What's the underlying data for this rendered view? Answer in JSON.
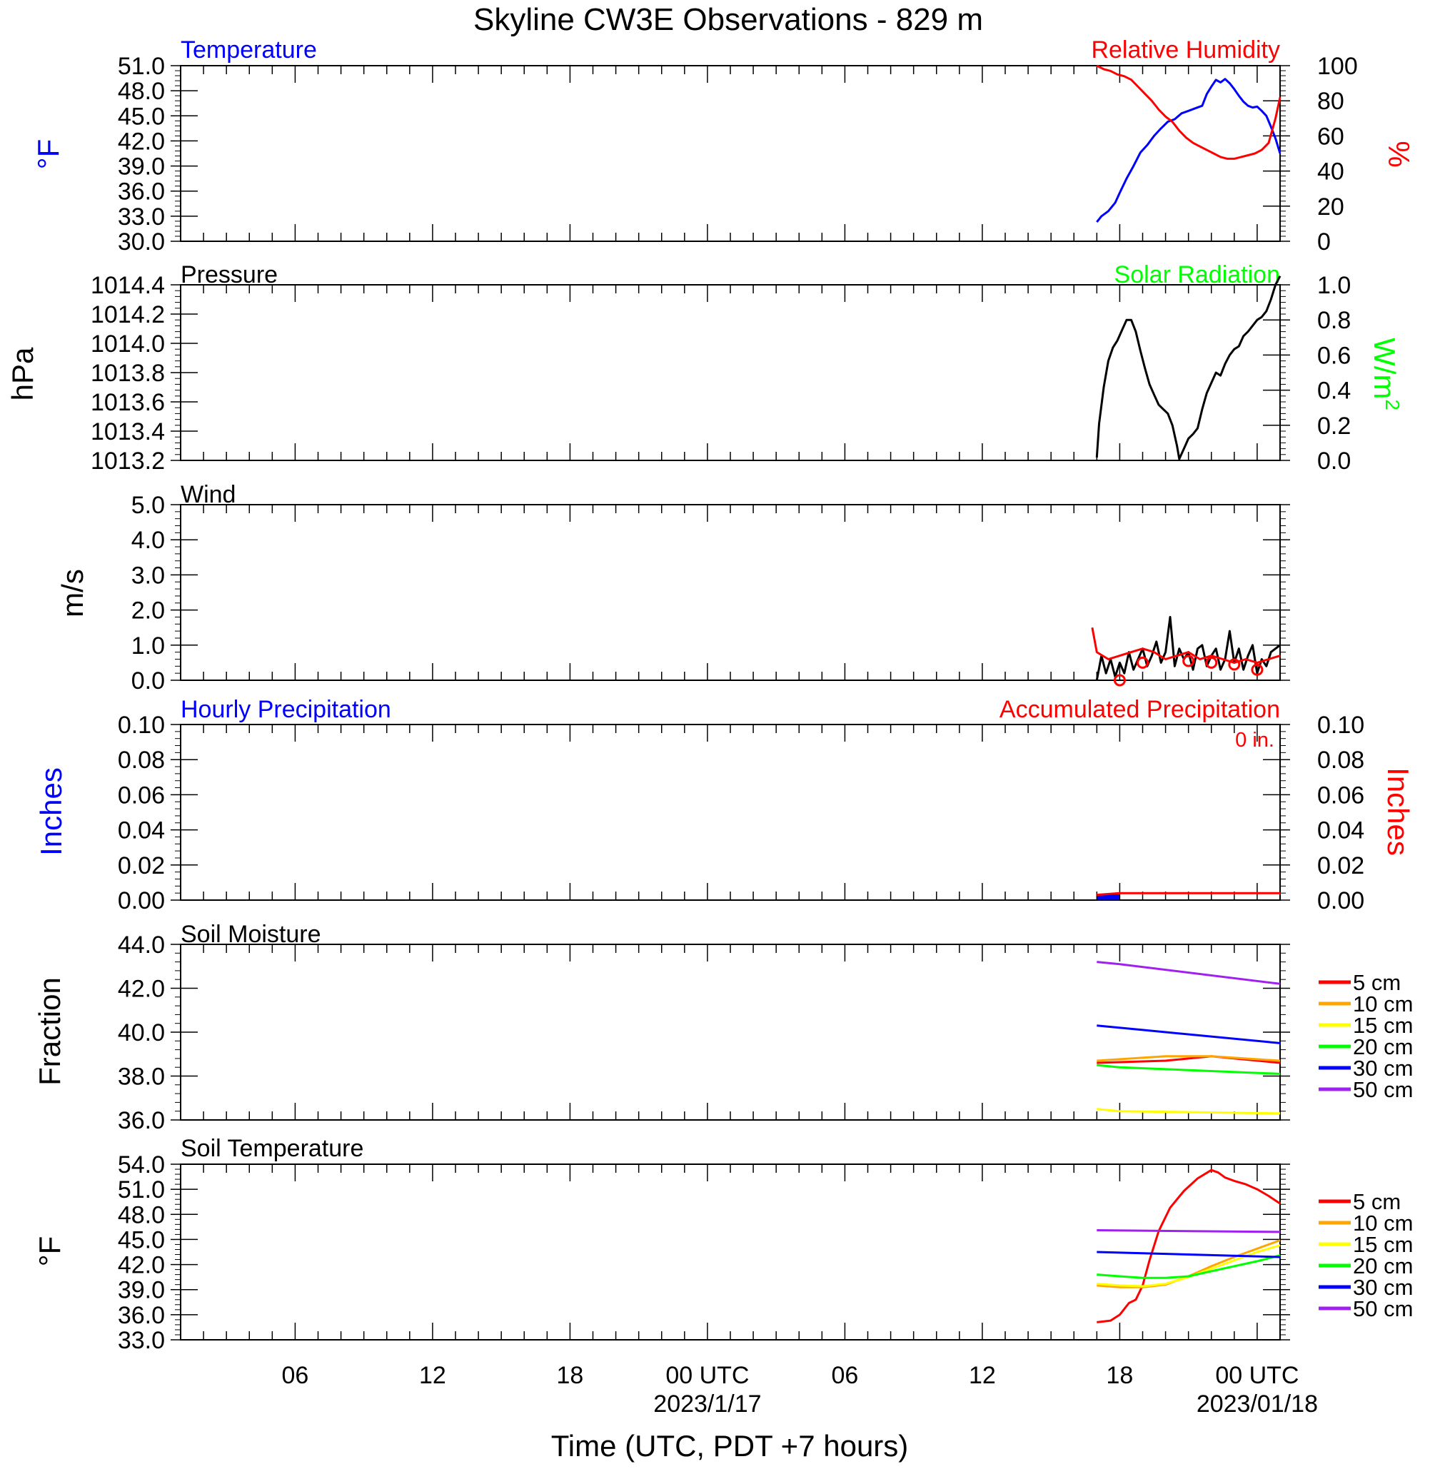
{
  "title": "Skyline CW3E Observations - 829 m",
  "x_axis": {
    "label": "Time (UTC, PDT +7 hours)",
    "tick_labels": [
      "06",
      "12",
      "18",
      "00 UTC",
      "06",
      "12",
      "18",
      "00 UTC"
    ],
    "tick_hours": [
      6,
      12,
      18,
      24,
      30,
      36,
      42,
      48
    ],
    "date_labels": [
      "2023/1/17",
      "2023/01/18"
    ],
    "date_hours": [
      24,
      48
    ],
    "range_hours": [
      1,
      49
    ],
    "note": "hours counted from 2023-01-16 00 UTC"
  },
  "colors": {
    "blue": "#0000ff",
    "red": "#ff0000",
    "green": "#00ff00",
    "black": "#000000"
  },
  "panels": {
    "temperature": {
      "title_left": "Temperature",
      "title_right": "Relative Humidity",
      "ylabel_left": "°F",
      "ylabel_right": "%",
      "ticks_left": [
        "51.0",
        "48.0",
        "45.0",
        "42.0",
        "39.0",
        "36.0",
        "33.0",
        "30.0"
      ],
      "ticks_right": [
        "100",
        "80",
        "60",
        "40",
        "20",
        "0"
      ]
    },
    "pressure": {
      "title_left": "Pressure",
      "title_right": "Solar Radiation",
      "ylabel_left": "hPa",
      "ylabel_right": "W/m2",
      "ticks_left": [
        "1014.4",
        "1014.2",
        "1014.0",
        "1013.8",
        "1013.6",
        "1013.4",
        "1013.2"
      ],
      "ticks_right": [
        "1.0",
        "0.8",
        "0.6",
        "0.4",
        "0.2",
        "0.0"
      ]
    },
    "wind": {
      "title_left": "Wind",
      "ylabel_left": "m/s",
      "ticks_left": [
        "5.0",
        "4.0",
        "3.0",
        "2.0",
        "1.0",
        "0.0"
      ]
    },
    "precip": {
      "title_left": "Hourly Precipitation",
      "title_right": "Accumulated Precipitation",
      "total": "0 in.",
      "ylabel_left": "Inches",
      "ylabel_right": "Inches",
      "ticks_left": [
        "0.10",
        "0.08",
        "0.06",
        "0.04",
        "0.02",
        "0.00"
      ],
      "ticks_right": [
        "0.10",
        "0.08",
        "0.06",
        "0.04",
        "0.02",
        "0.00"
      ]
    },
    "soil_moisture": {
      "title_left": "Soil Moisture",
      "ylabel_left": "Fraction",
      "ticks_left": [
        "44.0",
        "42.0",
        "40.0",
        "38.0",
        "36.0"
      ],
      "legend": [
        "5 cm",
        "10 cm",
        "15 cm",
        "20 cm",
        "30 cm",
        "50 cm"
      ]
    },
    "soil_temperature": {
      "title_left": "Soil Temperature",
      "ylabel_left": "°F",
      "ticks_left": [
        "54.0",
        "51.0",
        "48.0",
        "45.0",
        "42.0",
        "39.0",
        "36.0",
        "33.0"
      ],
      "legend": [
        "5 cm",
        "10 cm",
        "15 cm",
        "20 cm",
        "30 cm",
        "50 cm"
      ]
    }
  },
  "chart_data": [
    {
      "type": "line",
      "panel": "temperature",
      "ylim": [
        30,
        51
      ],
      "y2lim": [
        0,
        100
      ],
      "series": [
        {
          "name": "Temperature",
          "color": "#0000ff",
          "axis": "left",
          "x": [
            41.0,
            41.2,
            41.5,
            41.8,
            42.0,
            42.3,
            42.6,
            42.9,
            43.2,
            43.5,
            43.8,
            44.1,
            44.4,
            44.7,
            45.0,
            45.3,
            45.6,
            45.8,
            46.0,
            46.2,
            46.4,
            46.6,
            46.8,
            47.0,
            47.2,
            47.4,
            47.6,
            47.8,
            48.0,
            48.2,
            48.4,
            48.6,
            48.8,
            49.0
          ],
          "y": [
            32.3,
            33.0,
            33.6,
            34.6,
            35.8,
            37.5,
            39.0,
            40.6,
            41.5,
            42.6,
            43.5,
            44.3,
            44.6,
            45.3,
            45.6,
            45.9,
            46.2,
            47.6,
            48.5,
            49.3,
            49.0,
            49.4,
            48.9,
            48.2,
            47.4,
            46.7,
            46.2,
            46.0,
            46.1,
            45.6,
            45.0,
            43.7,
            42.3,
            40.5
          ]
        },
        {
          "name": "Relative Humidity",
          "color": "#ff0000",
          "axis": "right",
          "x": [
            41.0,
            41.3,
            41.6,
            41.9,
            42.2,
            42.5,
            42.8,
            43.1,
            43.4,
            43.7,
            44.0,
            44.3,
            44.6,
            44.9,
            45.2,
            45.5,
            45.8,
            46.1,
            46.4,
            46.7,
            47.0,
            47.3,
            47.6,
            47.9,
            48.2,
            48.5,
            48.8,
            49.0
          ],
          "y": [
            100,
            98,
            97,
            95,
            94,
            92,
            88,
            84,
            80,
            75,
            71,
            68,
            63,
            59,
            56,
            54,
            52,
            50,
            48,
            47,
            47,
            48,
            49,
            50,
            52,
            56,
            70,
            82
          ]
        }
      ]
    },
    {
      "type": "line",
      "panel": "pressure",
      "ylim": [
        1013.2,
        1014.4
      ],
      "y2lim": [
        0,
        1
      ],
      "series": [
        {
          "name": "Pressure",
          "color": "#000000",
          "axis": "left",
          "x": [
            41.0,
            41.1,
            41.3,
            41.5,
            41.7,
            41.9,
            42.1,
            42.3,
            42.5,
            42.7,
            42.9,
            43.1,
            43.3,
            43.5,
            43.7,
            43.9,
            44.1,
            44.3,
            44.5,
            44.6,
            44.8,
            45.0,
            45.2,
            45.4,
            45.6,
            45.8,
            46.0,
            46.2,
            46.4,
            46.6,
            46.8,
            47.0,
            47.2,
            47.4,
            47.6,
            47.8,
            48.0,
            48.2,
            48.4,
            48.6,
            48.8,
            49.0
          ],
          "y": [
            1013.22,
            1013.45,
            1013.7,
            1013.88,
            1013.97,
            1014.02,
            1014.09,
            1014.16,
            1014.16,
            1014.08,
            1013.95,
            1013.83,
            1013.72,
            1013.65,
            1013.58,
            1013.55,
            1013.52,
            1013.44,
            1013.3,
            1013.21,
            1013.28,
            1013.35,
            1013.38,
            1013.42,
            1013.55,
            1013.66,
            1013.73,
            1013.8,
            1013.78,
            1013.86,
            1013.92,
            1013.96,
            1013.98,
            1014.05,
            1014.08,
            1014.12,
            1014.16,
            1014.18,
            1014.22,
            1014.3,
            1014.4,
            1014.46
          ]
        }
      ]
    },
    {
      "type": "line",
      "panel": "wind",
      "ylim": [
        0,
        5
      ],
      "series": [
        {
          "name": "Wind Speed",
          "color": "#000000",
          "x": [
            41.0,
            41.2,
            41.4,
            41.6,
            41.8,
            42.0,
            42.2,
            42.4,
            42.6,
            42.8,
            43.0,
            43.2,
            43.4,
            43.6,
            43.8,
            44.0,
            44.2,
            44.4,
            44.6,
            44.8,
            45.0,
            45.2,
            45.4,
            45.6,
            45.8,
            46.0,
            46.2,
            46.4,
            46.6,
            46.8,
            47.0,
            47.2,
            47.4,
            47.6,
            47.8,
            48.0,
            48.2,
            48.4,
            48.6,
            48.8,
            49.0
          ],
          "y": [
            0.0,
            0.7,
            0.2,
            0.6,
            0.1,
            0.5,
            0.2,
            0.8,
            0.3,
            0.6,
            0.9,
            0.4,
            0.7,
            1.1,
            0.5,
            0.8,
            1.8,
            0.4,
            0.9,
            0.6,
            0.8,
            0.3,
            0.9,
            1.0,
            0.4,
            0.7,
            0.9,
            0.3,
            0.6,
            1.4,
            0.5,
            0.9,
            0.3,
            0.7,
            1.0,
            0.2,
            0.6,
            0.4,
            0.8,
            0.9,
            1.0
          ]
        },
        {
          "name": "Wind Gust",
          "color": "#ff0000",
          "x": [
            40.8,
            41.0,
            41.5,
            42.0,
            42.5,
            43.0,
            43.5,
            44.0,
            44.5,
            45.0,
            45.5,
            46.0,
            46.5,
            47.0,
            47.5,
            48.0,
            48.5,
            49.0
          ],
          "y": [
            1.5,
            0.8,
            0.6,
            0.7,
            0.8,
            0.9,
            0.8,
            0.6,
            0.7,
            0.8,
            0.6,
            0.7,
            0.6,
            0.5,
            0.6,
            0.5,
            0.6,
            0.7
          ]
        },
        {
          "name": "Gust markers",
          "color": "#ff0000",
          "x": [
            42.0,
            43.0,
            45.0,
            46.0,
            47.0,
            48.0
          ],
          "y": [
            0.0,
            0.5,
            0.55,
            0.5,
            0.45,
            0.3
          ]
        }
      ]
    },
    {
      "type": "bar",
      "panel": "precip",
      "ylim": [
        0,
        0.1
      ],
      "series": [
        {
          "name": "Hourly Precipitation",
          "color": "#0000ff",
          "x": [
            41.5
          ],
          "y": [
            0.003
          ]
        },
        {
          "name": "Accumulated Precipitation",
          "color": "#ff0000",
          "axis": "right",
          "x": [
            41.0,
            42.0,
            49.0
          ],
          "y": [
            0.003,
            0.004,
            0.004
          ]
        }
      ]
    },
    {
      "type": "line",
      "panel": "soil_moisture",
      "ylim": [
        36,
        44
      ],
      "series": [
        {
          "name": "5 cm",
          "color": "#ff0000",
          "x": [
            41.0,
            44.0,
            46.0,
            49.0
          ],
          "y": [
            38.6,
            38.7,
            38.9,
            38.6
          ]
        },
        {
          "name": "10 cm",
          "color": "#ffa500",
          "x": [
            41.0,
            44.0,
            46.0,
            49.0
          ],
          "y": [
            38.7,
            38.9,
            38.9,
            38.7
          ]
        },
        {
          "name": "15 cm",
          "color": "#ffff00",
          "x": [
            41.0,
            42.0,
            49.0
          ],
          "y": [
            36.5,
            36.4,
            36.3
          ]
        },
        {
          "name": "20 cm",
          "color": "#00ff00",
          "x": [
            41.0,
            42.0,
            49.0
          ],
          "y": [
            38.5,
            38.4,
            38.1
          ]
        },
        {
          "name": "30 cm",
          "color": "#0000ff",
          "x": [
            41.0,
            43.0,
            49.0
          ],
          "y": [
            40.3,
            40.1,
            39.5
          ]
        },
        {
          "name": "50 cm",
          "color": "#a020f0",
          "x": [
            41.0,
            42.0,
            49.0
          ],
          "y": [
            43.2,
            43.1,
            42.2
          ]
        }
      ]
    },
    {
      "type": "line",
      "panel": "soil_temperature",
      "ylim": [
        33,
        54
      ],
      "series": [
        {
          "name": "5 cm",
          "color": "#ff0000",
          "x": [
            41.0,
            41.6,
            42.0,
            42.4,
            42.7,
            43.0,
            43.3,
            43.7,
            44.2,
            44.8,
            45.4,
            46.0,
            46.3,
            46.6,
            47.0,
            47.5,
            48.0,
            48.5,
            49.0
          ],
          "y": [
            35.1,
            35.3,
            36.0,
            37.4,
            37.8,
            39.5,
            42.5,
            46.0,
            48.8,
            50.8,
            52.3,
            53.3,
            53.0,
            52.4,
            52.0,
            51.6,
            51.0,
            50.2,
            49.3
          ]
        },
        {
          "name": "10 cm",
          "color": "#ffa500",
          "x": [
            41.0,
            42.0,
            43.0,
            44.0,
            45.0,
            46.0,
            47.0,
            48.0,
            49.0
          ],
          "y": [
            39.5,
            39.3,
            39.3,
            39.6,
            40.6,
            41.8,
            42.9,
            43.9,
            44.9
          ]
        },
        {
          "name": "15 cm",
          "color": "#ffff00",
          "x": [
            41.0,
            42.0,
            43.0,
            44.0,
            45.0,
            46.0,
            47.0,
            48.0,
            49.0
          ],
          "y": [
            39.7,
            39.5,
            39.4,
            39.7,
            40.5,
            41.5,
            42.5,
            43.5,
            44.3
          ]
        },
        {
          "name": "20 cm",
          "color": "#00ff00",
          "x": [
            41.0,
            42.0,
            43.0,
            44.0,
            45.0,
            46.0,
            47.0,
            48.0,
            49.0
          ],
          "y": [
            40.8,
            40.6,
            40.4,
            40.4,
            40.6,
            41.2,
            41.8,
            42.4,
            43.1
          ]
        },
        {
          "name": "30 cm",
          "color": "#0000ff",
          "x": [
            41.0,
            49.0
          ],
          "y": [
            43.5,
            42.9
          ]
        },
        {
          "name": "50 cm",
          "color": "#a020f0",
          "x": [
            41.0,
            49.0
          ],
          "y": [
            46.1,
            45.9
          ]
        }
      ]
    }
  ]
}
